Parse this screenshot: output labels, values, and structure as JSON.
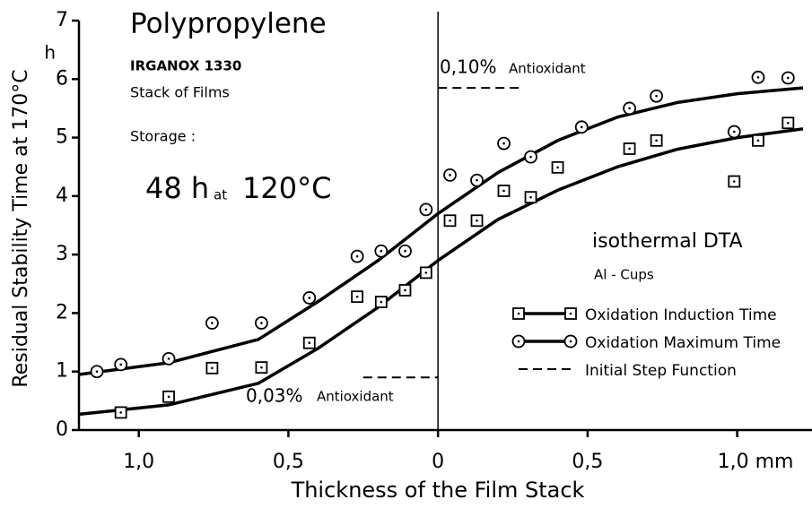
{
  "chart_data": {
    "type": "scatter",
    "title": "Polypropylene",
    "subtitle": "IRGANOX 1330",
    "x_label": "Thickness of the Film Stack",
    "y_label": "Residual Stability Time at 170°C",
    "y_unit": "h",
    "annotations": [
      "Stack of Films",
      "Storage :",
      "48 h",
      "at",
      "120°C",
      "0,10%",
      "Antioxidant",
      "0,03%",
      "Antioxidant",
      "isothermal DTA",
      "Al - Cups"
    ],
    "xlim": [
      -1.2,
      1.25
    ],
    "xticks": [
      {
        "value": -1,
        "label": "1,0"
      },
      {
        "value": -0.5,
        "label": "0,5"
      },
      0,
      {
        "value": 0.5,
        "label": "0,5"
      },
      {
        "value": 1,
        "label": "1,0 mm"
      }
    ],
    "ylim": [
      0,
      7
    ],
    "yticks": [
      0,
      1,
      2,
      3,
      4,
      5,
      6,
      7
    ],
    "legend": "lower right",
    "series": [
      {
        "name": "Oxidation Induction Time",
        "color": "#000000",
        "marker": "square",
        "x": [
          -1.06,
          -0.9,
          -0.755,
          -0.59,
          -0.43,
          -0.27,
          -0.19,
          -0.11,
          -0.04,
          0.04,
          0.13,
          0.22,
          0.31,
          0.4,
          0.64,
          0.73,
          0.99,
          1.07,
          1.17
        ],
        "values": [
          0.3,
          0.57,
          1.06,
          1.07,
          1.49,
          2.28,
          2.19,
          2.39,
          2.69,
          3.58,
          3.58,
          4.09,
          3.98,
          4.49,
          4.81,
          4.95,
          4.25,
          4.95,
          5.25
        ],
        "fit_x": [
          -1.2,
          -0.9,
          -0.6,
          -0.4,
          -0.2,
          0,
          0.2,
          0.4,
          0.6,
          0.8,
          1.0,
          1.22
        ],
        "fit_values": [
          0.27,
          0.43,
          0.8,
          1.4,
          2.1,
          2.9,
          3.6,
          4.1,
          4.5,
          4.8,
          5.0,
          5.15
        ]
      },
      {
        "name": "Oxidation Maximum Time",
        "color": "#000000",
        "marker": "circle",
        "x": [
          -1.14,
          -1.06,
          -0.9,
          -0.755,
          -0.59,
          -0.43,
          -0.27,
          -0.19,
          -0.11,
          -0.04,
          0.04,
          0.13,
          0.22,
          0.31,
          0.48,
          0.64,
          0.73,
          0.99,
          1.07,
          1.17
        ],
        "values": [
          1.0,
          1.12,
          1.22,
          1.83,
          1.83,
          2.26,
          2.97,
          3.06,
          3.06,
          3.77,
          4.36,
          4.27,
          4.9,
          4.67,
          5.18,
          5.5,
          5.71,
          5.1,
          6.03,
          6.02
        ],
        "fit_x": [
          -1.2,
          -0.9,
          -0.6,
          -0.4,
          -0.2,
          0,
          0.2,
          0.4,
          0.6,
          0.8,
          1.0,
          1.22
        ],
        "fit_values": [
          0.95,
          1.15,
          1.55,
          2.2,
          2.9,
          3.7,
          4.4,
          4.95,
          5.35,
          5.6,
          5.75,
          5.85
        ]
      },
      {
        "name": "Initial Step Function",
        "color": "#000000",
        "marker": "dashed",
        "x": [
          -0.25,
          0,
          null,
          0,
          0.27
        ],
        "values": [
          0.9,
          0.9,
          null,
          5.85,
          5.85
        ]
      }
    ]
  }
}
